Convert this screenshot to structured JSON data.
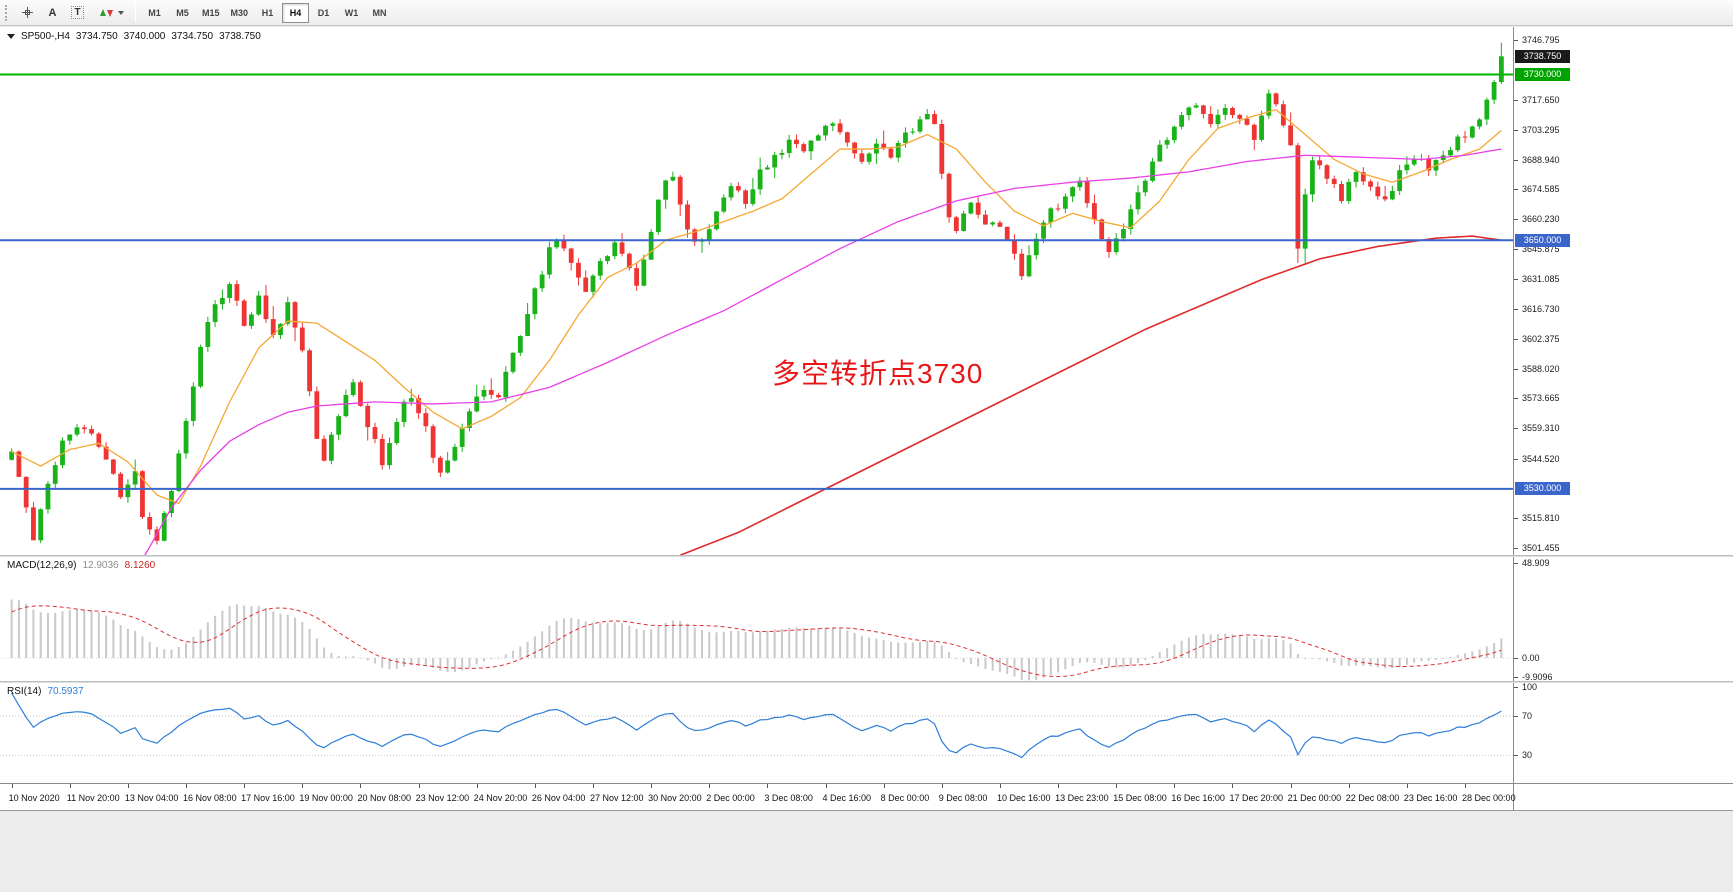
{
  "toolbar": {
    "text_tool_label": "A",
    "label_tool_label": "T",
    "timeframes": [
      "M1",
      "M5",
      "M15",
      "M30",
      "H1",
      "H4",
      "D1",
      "W1",
      "MN"
    ],
    "active_timeframe": "H4"
  },
  "chart": {
    "symbol_label": "SP500-,H4",
    "ohlc": {
      "open": "3734.750",
      "high": "3740.000",
      "low": "3734.750",
      "close": "3738.750"
    },
    "annotation": {
      "text": "多空转折点3730",
      "color": "#e81717"
    },
    "price_axis": {
      "ticks": [
        "3746.795",
        "3717.650",
        "3703.295",
        "3688.940",
        "3674.585",
        "3660.230",
        "3645.875",
        "3631.085",
        "3616.730",
        "3602.375",
        "3588.020",
        "3573.665",
        "3559.310",
        "3544.520",
        "3515.810",
        "3501.455"
      ],
      "badges": [
        {
          "label": "3738.750",
          "value": 3738.75,
          "type": "current",
          "bg": "#1a1a1a"
        },
        {
          "label": "3730.000",
          "value": 3730.0,
          "type": "level",
          "bg": "#00a400"
        },
        {
          "label": "3650.000",
          "value": 3650.0,
          "type": "level",
          "bg": "#3a66cc"
        },
        {
          "label": "3530.000",
          "value": 3530.0,
          "type": "level",
          "bg": "#3a66cc"
        }
      ]
    },
    "time_axis": {
      "labels": [
        "10 Nov 2020",
        "11 Nov 20:00",
        "13 Nov 04:00",
        "16 Nov 08:00",
        "17 Nov 16:00",
        "19 Nov 00:00",
        "20 Nov 08:00",
        "23 Nov 12:00",
        "24 Nov 20:00",
        "26 Nov 04:00",
        "27 Nov 12:00",
        "30 Nov 20:00",
        "2 Dec 00:00",
        "3 Dec 08:00",
        "4 Dec 16:00",
        "8 Dec 00:00",
        "9 Dec 08:00",
        "10 Dec 16:00",
        "13 Dec 23:00",
        "15 Dec 08:00",
        "16 Dec 16:00",
        "17 Dec 20:00",
        "21 Dec 00:00",
        "22 Dec 08:00",
        "23 Dec 16:00",
        "28 Dec 00:00"
      ]
    }
  },
  "indicators": {
    "macd": {
      "name_label": "MACD(12,26,9)",
      "value_main": "12.9036",
      "value_signal": "8.1260",
      "axis_ticks": [
        "48.909",
        "0.00",
        "-9.9096"
      ]
    },
    "rsi": {
      "name_label": "RSI(14)",
      "value": "70.5937",
      "axis_ticks": [
        "100",
        "70",
        "30"
      ]
    }
  },
  "chart_data": {
    "type": "candlestick",
    "symbol": "SP500-",
    "timeframe": "H4",
    "bars_visible": 206,
    "price_axis_range": [
      3498.1,
      3752.9
    ],
    "last_close": 3738.75,
    "close_waypoints": [
      [
        0,
        3550
      ],
      [
        1,
        3538
      ],
      [
        3,
        3506
      ],
      [
        5,
        3534
      ],
      [
        7,
        3552
      ],
      [
        9,
        3562
      ],
      [
        11,
        3556
      ],
      [
        13,
        3544
      ],
      [
        15,
        3526
      ],
      [
        17,
        3540
      ],
      [
        18,
        3518
      ],
      [
        20,
        3506
      ],
      [
        22,
        3530
      ],
      [
        24,
        3565
      ],
      [
        26,
        3598
      ],
      [
        28,
        3620
      ],
      [
        30,
        3627
      ],
      [
        32,
        3610
      ],
      [
        34,
        3622
      ],
      [
        36,
        3606
      ],
      [
        38,
        3618
      ],
      [
        40,
        3598
      ],
      [
        41,
        3575
      ],
      [
        42,
        3556
      ],
      [
        43,
        3544
      ],
      [
        45,
        3566
      ],
      [
        47,
        3582
      ],
      [
        49,
        3562
      ],
      [
        51,
        3543
      ],
      [
        53,
        3564
      ],
      [
        55,
        3576
      ],
      [
        57,
        3558
      ],
      [
        59,
        3536
      ],
      [
        61,
        3552
      ],
      [
        63,
        3568
      ],
      [
        65,
        3580
      ],
      [
        67,
        3574
      ],
      [
        68,
        3588
      ],
      [
        70,
        3605
      ],
      [
        72,
        3625
      ],
      [
        74,
        3645
      ],
      [
        75,
        3652
      ],
      [
        77,
        3640
      ],
      [
        79,
        3624
      ],
      [
        81,
        3638
      ],
      [
        83,
        3650
      ],
      [
        85,
        3638
      ],
      [
        86,
        3628
      ],
      [
        88,
        3652
      ],
      [
        89,
        3668
      ],
      [
        90,
        3680
      ],
      [
        91,
        3682
      ],
      [
        93,
        3655
      ],
      [
        95,
        3648
      ],
      [
        97,
        3665
      ],
      [
        99,
        3676
      ],
      [
        101,
        3668
      ],
      [
        103,
        3682
      ],
      [
        105,
        3690
      ],
      [
        107,
        3698
      ],
      [
        109,
        3692
      ],
      [
        111,
        3702
      ],
      [
        113,
        3707
      ],
      [
        115,
        3696
      ],
      [
        117,
        3688
      ],
      [
        119,
        3698
      ],
      [
        121,
        3692
      ],
      [
        123,
        3700
      ],
      [
        125,
        3707
      ],
      [
        126,
        3713
      ],
      [
        127,
        3705
      ],
      [
        128,
        3680
      ],
      [
        129,
        3660
      ],
      [
        130,
        3655
      ],
      [
        132,
        3668
      ],
      [
        134,
        3660
      ],
      [
        136,
        3655
      ],
      [
        138,
        3642
      ],
      [
        139,
        3635
      ],
      [
        141,
        3652
      ],
      [
        143,
        3665
      ],
      [
        145,
        3670
      ],
      [
        147,
        3678
      ],
      [
        149,
        3660
      ],
      [
        151,
        3642
      ],
      [
        153,
        3655
      ],
      [
        155,
        3672
      ],
      [
        157,
        3688
      ],
      [
        159,
        3700
      ],
      [
        161,
        3710
      ],
      [
        163,
        3716
      ],
      [
        165,
        3705
      ],
      [
        167,
        3716
      ],
      [
        169,
        3708
      ],
      [
        171,
        3700
      ],
      [
        173,
        3722
      ],
      [
        175,
        3706
      ],
      [
        176,
        3696
      ],
      [
        177,
        3648
      ],
      [
        178,
        3672
      ],
      [
        179,
        3690
      ],
      [
        181,
        3680
      ],
      [
        183,
        3670
      ],
      [
        185,
        3682
      ],
      [
        187,
        3676
      ],
      [
        189,
        3670
      ],
      [
        191,
        3682
      ],
      [
        193,
        3690
      ],
      [
        195,
        3686
      ],
      [
        197,
        3692
      ],
      [
        199,
        3698
      ],
      [
        201,
        3704
      ],
      [
        202,
        3710
      ],
      [
        203,
        3718
      ],
      [
        204,
        3728
      ],
      [
        205,
        3739
      ]
    ],
    "warmup_waypoints": [
      [
        0,
        3390
      ],
      [
        25,
        3445
      ],
      [
        50,
        3405
      ],
      [
        75,
        3460
      ],
      [
        100,
        3430
      ],
      [
        125,
        3455
      ],
      [
        140,
        3360
      ],
      [
        150,
        3315
      ],
      [
        158,
        3390
      ],
      [
        166,
        3425
      ],
      [
        180,
        3440
      ],
      [
        188,
        3452
      ],
      [
        194,
        3505
      ],
      [
        199,
        3545
      ]
    ],
    "ma_lines": [
      {
        "name": "ma-fast-orange",
        "color": "#f5a833",
        "width": 1.3,
        "points": [
          [
            0,
            3548
          ],
          [
            4,
            3541
          ],
          [
            8,
            3549
          ],
          [
            12,
            3552
          ],
          [
            16,
            3543
          ],
          [
            20,
            3527
          ],
          [
            23,
            3523
          ],
          [
            26,
            3541
          ],
          [
            30,
            3572
          ],
          [
            34,
            3598
          ],
          [
            38,
            3611
          ],
          [
            42,
            3610
          ],
          [
            46,
            3601
          ],
          [
            50,
            3592
          ],
          [
            54,
            3579
          ],
          [
            58,
            3567
          ],
          [
            62,
            3559
          ],
          [
            66,
            3565
          ],
          [
            70,
            3574
          ],
          [
            74,
            3592
          ],
          [
            78,
            3614
          ],
          [
            82,
            3632
          ],
          [
            86,
            3639
          ],
          [
            90,
            3650
          ],
          [
            94,
            3654
          ],
          [
            98,
            3659
          ],
          [
            102,
            3664
          ],
          [
            106,
            3670
          ],
          [
            110,
            3682
          ],
          [
            114,
            3694
          ],
          [
            118,
            3694
          ],
          [
            122,
            3695
          ],
          [
            126,
            3701
          ],
          [
            130,
            3694
          ],
          [
            134,
            3678
          ],
          [
            138,
            3664
          ],
          [
            142,
            3657
          ],
          [
            146,
            3663
          ],
          [
            150,
            3659
          ],
          [
            154,
            3656
          ],
          [
            158,
            3669
          ],
          [
            162,
            3689
          ],
          [
            166,
            3704
          ],
          [
            170,
            3709
          ],
          [
            174,
            3713
          ],
          [
            178,
            3701
          ],
          [
            182,
            3689
          ],
          [
            186,
            3682
          ],
          [
            190,
            3678
          ],
          [
            194,
            3683
          ],
          [
            198,
            3689
          ],
          [
            202,
            3694
          ],
          [
            205,
            3703
          ]
        ]
      },
      {
        "name": "ma-mid-magenta",
        "color": "#e93fe9",
        "width": 1.3,
        "points": [
          [
            17,
            3490
          ],
          [
            19,
            3502
          ],
          [
            22,
            3521
          ],
          [
            26,
            3539
          ],
          [
            30,
            3553
          ],
          [
            34,
            3561
          ],
          [
            38,
            3567
          ],
          [
            42,
            3570
          ],
          [
            50,
            3572
          ],
          [
            58,
            3571
          ],
          [
            66,
            3572
          ],
          [
            74,
            3579
          ],
          [
            82,
            3591
          ],
          [
            90,
            3604
          ],
          [
            98,
            3616
          ],
          [
            106,
            3631
          ],
          [
            114,
            3646
          ],
          [
            122,
            3659
          ],
          [
            130,
            3669
          ],
          [
            138,
            3675
          ],
          [
            146,
            3678
          ],
          [
            154,
            3680
          ],
          [
            162,
            3683
          ],
          [
            170,
            3688
          ],
          [
            178,
            3691
          ],
          [
            186,
            3690
          ],
          [
            194,
            3689
          ],
          [
            200,
            3691
          ],
          [
            205,
            3694
          ]
        ]
      },
      {
        "name": "ma-slow-red",
        "color": "#e02929",
        "width": 1.6,
        "points": [
          [
            92,
            3498
          ],
          [
            100,
            3509
          ],
          [
            108,
            3523
          ],
          [
            116,
            3537
          ],
          [
            124,
            3551
          ],
          [
            132,
            3565
          ],
          [
            140,
            3579
          ],
          [
            148,
            3593
          ],
          [
            156,
            3607
          ],
          [
            164,
            3619
          ],
          [
            172,
            3631
          ],
          [
            180,
            3641
          ],
          [
            188,
            3647
          ],
          [
            196,
            3651
          ],
          [
            201,
            3652
          ],
          [
            205,
            3650
          ]
        ]
      }
    ],
    "hlines": [
      {
        "price": 3730.0,
        "color": "#00b400",
        "width": 2
      },
      {
        "price": 3650.0,
        "color": "#3a66cc",
        "width": 2
      },
      {
        "price": 3530.0,
        "color": "#3a66cc",
        "width": 2
      }
    ],
    "candle_colors": {
      "up": "#19b219",
      "down": "#ef3434"
    },
    "indicator_panes": {
      "macd": {
        "range": [
          -11.8,
          52.0
        ],
        "histogram_color": "#c9c9c9",
        "signal_color": "#e03030"
      },
      "rsi": {
        "range": [
          1.5,
          104
        ],
        "line_color": "#2f7ed8",
        "levels": [
          70,
          30
        ]
      }
    }
  }
}
